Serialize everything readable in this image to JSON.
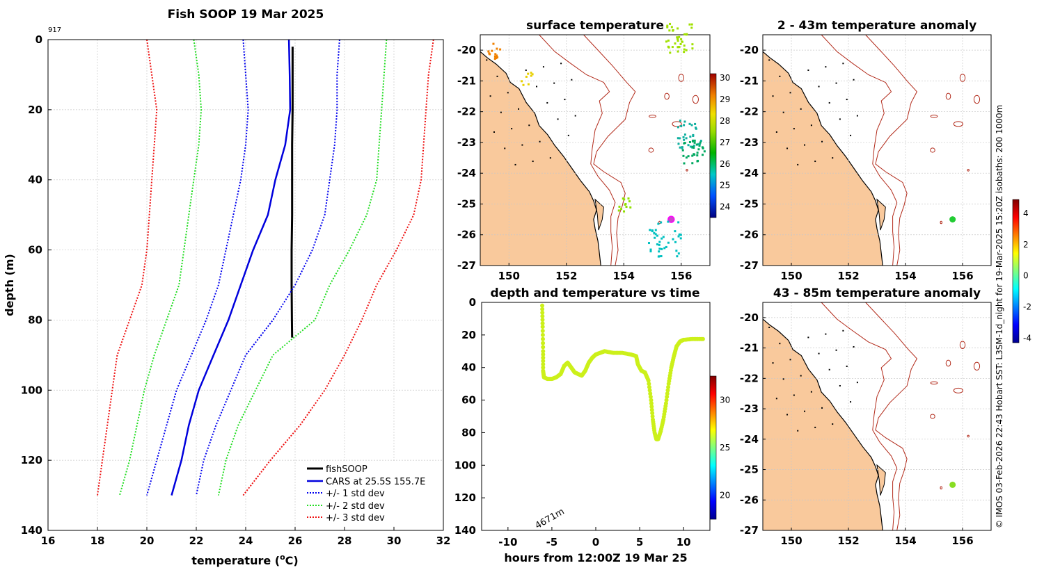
{
  "chart_data": [
    {
      "type": "line",
      "title": "Fish SOOP 19 Mar 2025",
      "corner_label": "917",
      "xlabel": "temperature (°C)",
      "xlabel_main": "temperature (",
      "xlabel_sup": "o",
      "xlabel_unit": "C)",
      "ylabel": "depth (m)",
      "xlim": [
        16,
        32
      ],
      "ylim": [
        140,
        0
      ],
      "xticks": [
        "16",
        "18",
        "20",
        "22",
        "24",
        "26",
        "28",
        "30",
        "32"
      ],
      "yticks": [
        "0",
        "20",
        "40",
        "60",
        "80",
        "100",
        "120",
        "140"
      ],
      "legend": [
        "fishSOOP",
        "CARS at 25.5S 155.7E",
        "+/- 1 std dev",
        "+/- 2 std dev",
        "+/- 3 std dev"
      ],
      "series": [
        {
          "name": "fishSOOP",
          "color": "#000000",
          "style": "solid",
          "width": 3,
          "points": [
            [
              25.9,
              2
            ],
            [
              25.9,
              10
            ],
            [
              25.9,
              20
            ],
            [
              25.88,
              30
            ],
            [
              25.88,
              40
            ],
            [
              25.88,
              50
            ],
            [
              25.86,
              60
            ],
            [
              25.86,
              70
            ],
            [
              25.87,
              80
            ],
            [
              25.88,
              85
            ]
          ]
        },
        {
          "name": "CARS at 25.5S 155.7E",
          "color": "#0000dd",
          "style": "solid",
          "width": 2.5,
          "points": [
            [
              25.75,
              0
            ],
            [
              25.78,
              10
            ],
            [
              25.8,
              20
            ],
            [
              25.6,
              30
            ],
            [
              25.4,
              35
            ],
            [
              25.2,
              40
            ],
            [
              24.9,
              50
            ],
            [
              24.3,
              60
            ],
            [
              23.8,
              70
            ],
            [
              23.3,
              80
            ],
            [
              22.7,
              90
            ],
            [
              22.1,
              100
            ],
            [
              21.7,
              110
            ],
            [
              21.4,
              120
            ],
            [
              21.0,
              130
            ]
          ]
        },
        {
          "name": "+3 std dev",
          "color": "#ee1111",
          "style": "dot",
          "width": 2,
          "points": [
            [
              31.6,
              0
            ],
            [
              31.4,
              10
            ],
            [
              31.3,
              20
            ],
            [
              31.2,
              30
            ],
            [
              31.1,
              40
            ],
            [
              30.8,
              50
            ],
            [
              30.1,
              60
            ],
            [
              29.3,
              70
            ],
            [
              28.7,
              80
            ],
            [
              28.0,
              90
            ],
            [
              27.2,
              100
            ],
            [
              26.2,
              110
            ],
            [
              25.0,
              120
            ],
            [
              23.9,
              130
            ]
          ]
        },
        {
          "name": "+2 std dev",
          "color": "#22dd22",
          "style": "dot",
          "width": 2,
          "points": [
            [
              29.7,
              0
            ],
            [
              29.6,
              10
            ],
            [
              29.5,
              20
            ],
            [
              29.4,
              30
            ],
            [
              29.3,
              40
            ],
            [
              28.9,
              50
            ],
            [
              28.2,
              60
            ],
            [
              27.4,
              70
            ],
            [
              26.8,
              80
            ],
            [
              25.1,
              90
            ],
            [
              24.4,
              100
            ],
            [
              23.7,
              110
            ],
            [
              23.2,
              120
            ],
            [
              22.9,
              130
            ]
          ]
        },
        {
          "name": "+1 std dev",
          "color": "#0000ee",
          "style": "dot",
          "width": 2,
          "points": [
            [
              27.8,
              0
            ],
            [
              27.7,
              10
            ],
            [
              27.7,
              20
            ],
            [
              27.6,
              30
            ],
            [
              27.4,
              40
            ],
            [
              27.2,
              50
            ],
            [
              26.7,
              60
            ],
            [
              26.0,
              70
            ],
            [
              25.1,
              80
            ],
            [
              24.0,
              90
            ],
            [
              23.4,
              100
            ],
            [
              22.8,
              110
            ],
            [
              22.3,
              120
            ],
            [
              22.0,
              130
            ]
          ]
        },
        {
          "name": "-1 std dev",
          "color": "#0000ee",
          "style": "dot",
          "width": 2,
          "points": [
            [
              23.9,
              0
            ],
            [
              24.0,
              10
            ],
            [
              24.1,
              20
            ],
            [
              24.0,
              30
            ],
            [
              23.8,
              40
            ],
            [
              23.5,
              50
            ],
            [
              23.2,
              60
            ],
            [
              22.9,
              70
            ],
            [
              22.4,
              80
            ],
            [
              21.8,
              90
            ],
            [
              21.2,
              100
            ],
            [
              20.8,
              110
            ],
            [
              20.4,
              120
            ],
            [
              20.0,
              130
            ]
          ]
        },
        {
          "name": "-2 std dev",
          "color": "#22dd22",
          "style": "dot",
          "width": 2,
          "points": [
            [
              21.9,
              0
            ],
            [
              22.1,
              10
            ],
            [
              22.2,
              20
            ],
            [
              22.1,
              30
            ],
            [
              21.9,
              40
            ],
            [
              21.7,
              50
            ],
            [
              21.5,
              60
            ],
            [
              21.3,
              70
            ],
            [
              20.8,
              80
            ],
            [
              20.3,
              90
            ],
            [
              19.9,
              100
            ],
            [
              19.6,
              110
            ],
            [
              19.3,
              120
            ],
            [
              18.9,
              130
            ]
          ]
        },
        {
          "name": "-3 std dev",
          "color": "#ee1111",
          "style": "dot",
          "width": 2,
          "points": [
            [
              20.0,
              0
            ],
            [
              20.2,
              10
            ],
            [
              20.4,
              20
            ],
            [
              20.3,
              30
            ],
            [
              20.2,
              40
            ],
            [
              20.1,
              50
            ],
            [
              20.0,
              60
            ],
            [
              19.8,
              70
            ],
            [
              19.3,
              80
            ],
            [
              18.8,
              90
            ],
            [
              18.6,
              100
            ],
            [
              18.4,
              110
            ],
            [
              18.2,
              120
            ],
            [
              18.0,
              130
            ]
          ]
        }
      ]
    },
    {
      "type": "map",
      "title": "surface temperature",
      "lon_range": [
        149,
        157
      ],
      "lat_range": [
        -27,
        -19.5
      ],
      "xticks": [
        "150",
        "152",
        "154",
        "156"
      ],
      "yticks": [
        "-20",
        "-21",
        "-22",
        "-23",
        "-24",
        "-25",
        "-26",
        "-27"
      ],
      "colorbar": {
        "min": 23.5,
        "max": 30.2,
        "ticks": [
          "24",
          "25",
          "26",
          "27",
          "28",
          "29",
          "30"
        ]
      },
      "marker": {
        "lon": 155.65,
        "lat": -25.5,
        "color": "#cc44cc"
      }
    },
    {
      "type": "map",
      "title": "2 - 43m temperature anomaly",
      "lon_range": [
        149,
        157
      ],
      "lat_range": [
        -27,
        -19.5
      ],
      "xticks": [
        "150",
        "152",
        "154",
        "156"
      ],
      "yticks": [
        "-20",
        "-21",
        "-22",
        "-23",
        "-24",
        "-25",
        "-26",
        "-27"
      ],
      "marker": {
        "lon": 155.65,
        "lat": -25.5,
        "color": "#22cc33"
      }
    },
    {
      "type": "map",
      "title": "43 - 85m temperature anomaly",
      "lon_range": [
        149,
        157
      ],
      "lat_range": [
        -27,
        -19.5
      ],
      "xticks": [
        "150",
        "152",
        "154",
        "156"
      ],
      "yticks": [
        "-20",
        "-21",
        "-22",
        "-23",
        "-24",
        "-25",
        "-26",
        "-27"
      ],
      "marker": {
        "lon": 155.65,
        "lat": -25.5,
        "color": "#88dd22"
      }
    },
    {
      "type": "scatter",
      "title": "depth and temperature vs time",
      "xlabel": "hours from 12:00Z 19 Mar 25",
      "xlim": [
        -13,
        13
      ],
      "ylim": [
        140,
        0
      ],
      "xticks": [
        "-10",
        "-5",
        "0",
        "5",
        "10"
      ],
      "yticks": [
        "0",
        "20",
        "40",
        "60",
        "80",
        "100",
        "120",
        "140"
      ],
      "annotation": "4671m",
      "color": "#ccf01a",
      "points": [
        [
          -6.1,
          2
        ],
        [
          -6.05,
          15
        ],
        [
          -6.0,
          30
        ],
        [
          -6.0,
          42
        ],
        [
          -5.9,
          46
        ],
        [
          -5.5,
          47
        ],
        [
          -5,
          47
        ],
        [
          -4.5,
          46
        ],
        [
          -4,
          44
        ],
        [
          -3.6,
          39
        ],
        [
          -3.2,
          37
        ],
        [
          -2.8,
          40
        ],
        [
          -2.4,
          43
        ],
        [
          -2,
          44
        ],
        [
          -1.6,
          45
        ],
        [
          -1.2,
          42
        ],
        [
          -0.8,
          37
        ],
        [
          -0.4,
          34
        ],
        [
          0,
          32
        ],
        [
          0.5,
          31
        ],
        [
          1,
          30
        ],
        [
          2,
          31
        ],
        [
          3,
          31
        ],
        [
          4,
          32
        ],
        [
          4.6,
          33
        ],
        [
          4.8,
          38
        ],
        [
          5.2,
          42
        ],
        [
          5.6,
          43
        ],
        [
          6,
          48
        ],
        [
          6.3,
          60
        ],
        [
          6.5,
          72
        ],
        [
          6.7,
          80
        ],
        [
          6.9,
          84
        ],
        [
          7.1,
          84
        ],
        [
          7.4,
          79
        ],
        [
          7.7,
          72
        ],
        [
          8,
          62
        ],
        [
          8.3,
          50
        ],
        [
          8.6,
          40
        ],
        [
          8.9,
          33
        ],
        [
          9.2,
          27
        ],
        [
          9.6,
          24
        ],
        [
          10,
          23
        ],
        [
          11,
          22.5
        ],
        [
          12.2,
          22.5
        ]
      ],
      "colorbar": {
        "min": 17.5,
        "max": 32.5,
        "ticks": [
          "20",
          "25",
          "30"
        ]
      }
    }
  ],
  "anomaly_colorbar": {
    "min": -4.3,
    "max": 4.9,
    "ticks": [
      "4",
      "2",
      "0",
      "-2",
      "-4"
    ]
  },
  "credit": "© IMOS 03-Feb-2026 22:43 Hobart SST: L3SM-1d_night for 19-Mar-2025 15:20Z isobaths: 200  1000m"
}
